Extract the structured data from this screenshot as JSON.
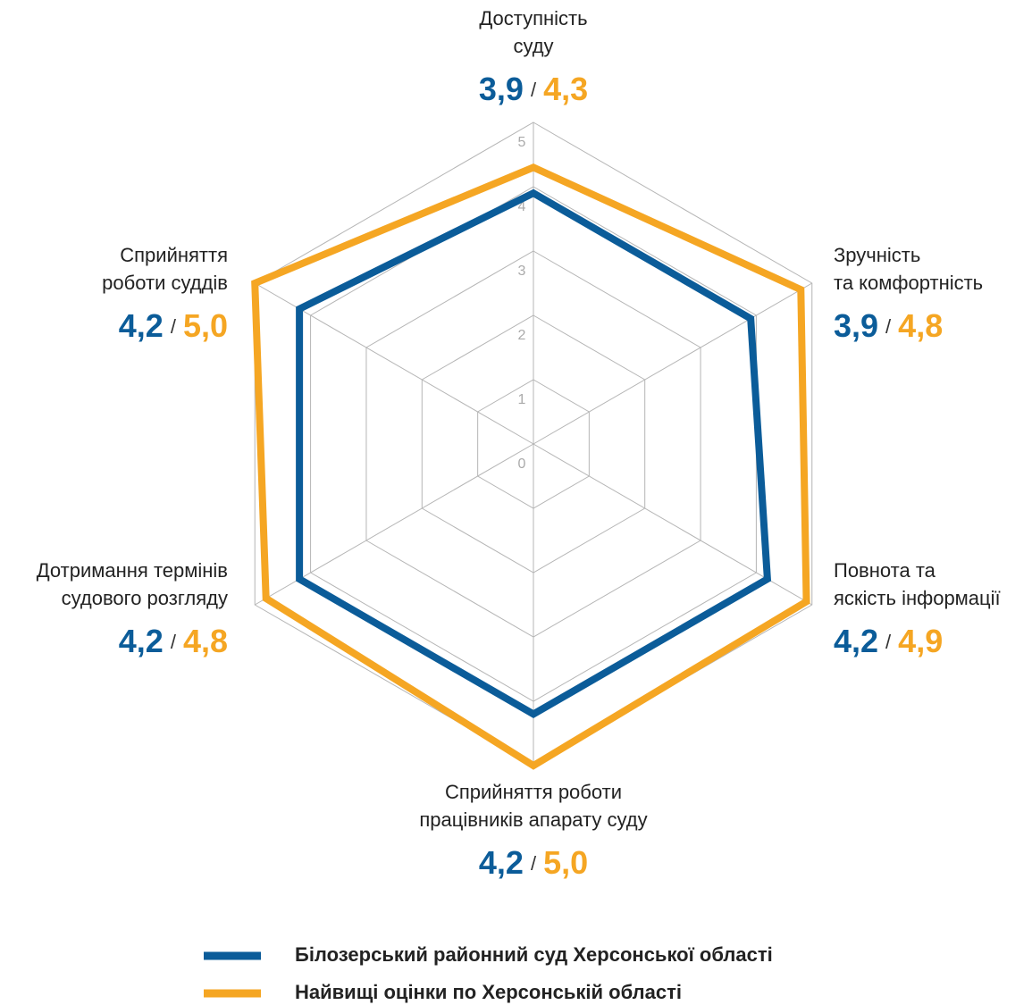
{
  "chart_data": {
    "type": "radar",
    "categories": [
      [
        "Доступність",
        "суду"
      ],
      [
        "Зручність",
        "та комфортність"
      ],
      [
        "Повнота та",
        "яскість інформації"
      ],
      [
        "Сприйняття роботи",
        "працівників апарату суду"
      ],
      [
        "Дотримання термінів",
        "судового розгляду"
      ],
      [
        "Сприйняття",
        "роботи суддів"
      ]
    ],
    "series": [
      {
        "name": "Білозерський районний суд Херсонської області",
        "color": "#0b5c99",
        "values": [
          3.9,
          3.9,
          4.2,
          4.2,
          4.2,
          4.2
        ],
        "value_labels": [
          "3,9",
          "3,9",
          "4,2",
          "4,2",
          "4,2",
          "4,2"
        ]
      },
      {
        "name": "Найвищі оцінки по Херсонській області",
        "color": "#f5a623",
        "values": [
          4.3,
          4.8,
          4.9,
          5.0,
          4.8,
          5.0
        ],
        "value_labels": [
          "4,3",
          "4,8",
          "4,9",
          "5,0",
          "4,8",
          "5,0"
        ]
      }
    ],
    "value_separator": "/",
    "ylim": [
      0,
      5
    ],
    "yticks": [
      0,
      1,
      2,
      3,
      4,
      5
    ],
    "grid": true
  }
}
